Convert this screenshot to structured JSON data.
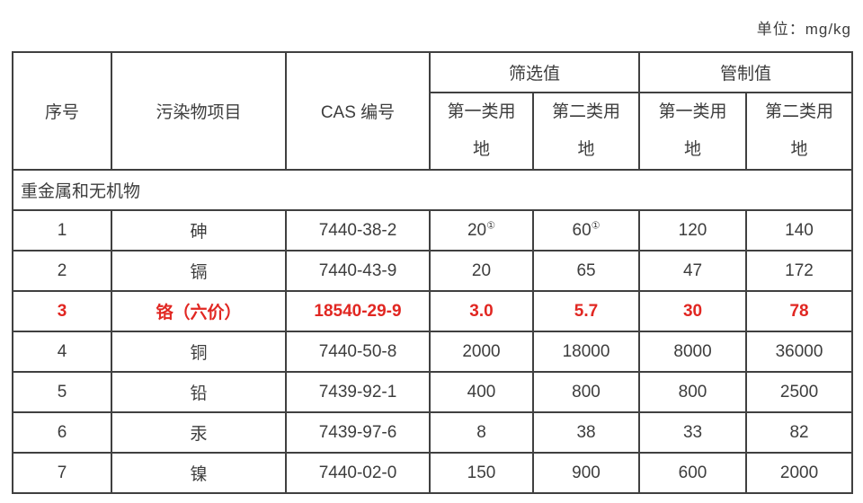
{
  "unit_label": "单位：mg/kg",
  "table": {
    "headers": {
      "col_no": "序号",
      "col_pollutant": "污染物项目",
      "col_cas": "CAS 编号",
      "group_screening": "筛选值",
      "group_control": "管制值",
      "sub_land1_line1": "第一类用",
      "sub_land2_line1": "第二类用",
      "sub_line2": "地"
    },
    "section_label": "重金属和无机物",
    "rows": [
      {
        "no": "1",
        "pollutant": "砷",
        "cas": "7440-38-2",
        "highlight": false,
        "values": [
          {
            "v": "20",
            "sup": "①"
          },
          {
            "v": "60",
            "sup": "①"
          },
          {
            "v": "120"
          },
          {
            "v": "140"
          }
        ]
      },
      {
        "no": "2",
        "pollutant": "镉",
        "cas": "7440-43-9",
        "highlight": false,
        "values": [
          {
            "v": "20"
          },
          {
            "v": "65"
          },
          {
            "v": "47"
          },
          {
            "v": "172"
          }
        ]
      },
      {
        "no": "3",
        "pollutant": "铬（六价）",
        "cas": "18540-29-9",
        "highlight": true,
        "values": [
          {
            "v": "3.0"
          },
          {
            "v": "5.7"
          },
          {
            "v": "30"
          },
          {
            "v": "78"
          }
        ]
      },
      {
        "no": "4",
        "pollutant": "铜",
        "cas": "7440-50-8",
        "highlight": false,
        "values": [
          {
            "v": "2000"
          },
          {
            "v": "18000"
          },
          {
            "v": "8000"
          },
          {
            "v": "36000"
          }
        ]
      },
      {
        "no": "5",
        "pollutant": "铅",
        "cas": "7439-92-1",
        "highlight": false,
        "values": [
          {
            "v": "400"
          },
          {
            "v": "800"
          },
          {
            "v": "800"
          },
          {
            "v": "2500"
          }
        ]
      },
      {
        "no": "6",
        "pollutant": "汞",
        "cas": "7439-97-6",
        "highlight": false,
        "values": [
          {
            "v": "8"
          },
          {
            "v": "38"
          },
          {
            "v": "33"
          },
          {
            "v": "82"
          }
        ]
      },
      {
        "no": "7",
        "pollutant": "镍",
        "cas": "7440-02-0",
        "highlight": false,
        "values": [
          {
            "v": "150"
          },
          {
            "v": "900"
          },
          {
            "v": "600"
          },
          {
            "v": "2000"
          }
        ]
      }
    ]
  },
  "colors": {
    "text": "#3d3d3d",
    "border": "#404040",
    "highlight_red": "#e12722",
    "background": "#ffffff"
  }
}
